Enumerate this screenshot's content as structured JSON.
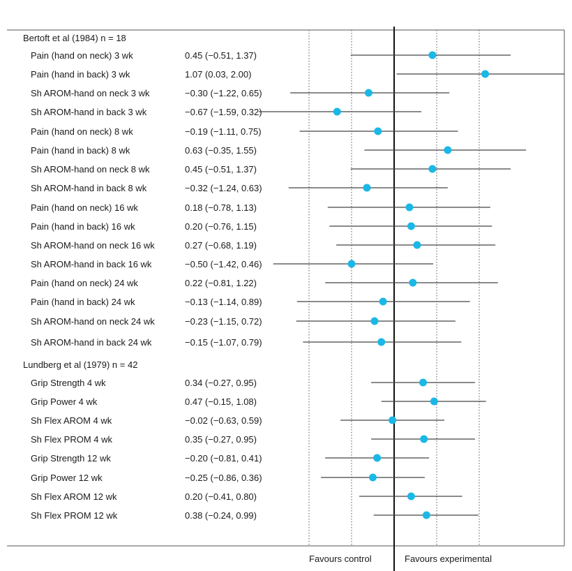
{
  "chart_data": {
    "type": "forest",
    "x_range": [
      -1.8,
      2.0
    ],
    "reference_line": 0,
    "dotted_gridlines": [
      -1.0,
      -0.5,
      0.5,
      1.0
    ],
    "marker_color": "#1ab8e6",
    "line_color": "#444444",
    "footer_labels": {
      "left": "Favours control",
      "right": "Favours experimental"
    },
    "groups": [
      {
        "title": "Bertoft et al (1984) n = 18",
        "rows": [
          {
            "label": "Pain (hand on neck) 3 wk",
            "ci_text": "0.45 (−0.51, 1.37)",
            "est": 0.45,
            "lo": -0.51,
            "hi": 1.37
          },
          {
            "label": "Pain (hand in back) 3 wk",
            "ci_text": "1.07 (0.03, 2.00)",
            "est": 1.07,
            "lo": 0.03,
            "hi": 2.0
          },
          {
            "label": "Sh AROM-hand on neck 3 wk",
            "ci_text": "−0.30 (−1.22, 0.65)",
            "est": -0.3,
            "lo": -1.22,
            "hi": 0.65
          },
          {
            "label": "Sh AROM-hand in back 3 wk",
            "ci_text": "−0.67 (−1.59, 0.32)",
            "est": -0.67,
            "lo": -1.59,
            "hi": 0.32
          },
          {
            "label": "Pain (hand on neck) 8 wk",
            "ci_text": "−0.19 (−1.11, 0.75)",
            "est": -0.19,
            "lo": -1.11,
            "hi": 0.75
          },
          {
            "label": "Pain (hand in back) 8 wk",
            "ci_text": "0.63 (−0.35, 1.55)",
            "est": 0.63,
            "lo": -0.35,
            "hi": 1.55
          },
          {
            "label": "Sh AROM-hand on neck 8 wk",
            "ci_text": "0.45 (−0.51, 1.37)",
            "est": 0.45,
            "lo": -0.51,
            "hi": 1.37
          },
          {
            "label": "Sh AROM-hand in back 8 wk",
            "ci_text": "−0.32 (−1.24, 0.63)",
            "est": -0.32,
            "lo": -1.24,
            "hi": 0.63
          },
          {
            "label": "Pain (hand on neck) 16 wk",
            "ci_text": "0.18 (−0.78, 1.13)",
            "est": 0.18,
            "lo": -0.78,
            "hi": 1.13
          },
          {
            "label": "Pain (hand in back) 16 wk",
            "ci_text": "0.20 (−0.76, 1.15)",
            "est": 0.2,
            "lo": -0.76,
            "hi": 1.15
          },
          {
            "label": "Sh AROM-hand on neck 16 wk",
            "ci_text": "0.27 (−0.68, 1.19)",
            "est": 0.27,
            "lo": -0.68,
            "hi": 1.19
          },
          {
            "label": "Sh AROM-hand in back 16 wk",
            "ci_text": "−0.50 (−1.42, 0.46)",
            "est": -0.5,
            "lo": -1.42,
            "hi": 0.46
          },
          {
            "label": "Pain (hand on neck) 24 wk",
            "ci_text": "0.22 (−0.81, 1.22)",
            "est": 0.22,
            "lo": -0.81,
            "hi": 1.22
          },
          {
            "label": "Pain (hand in back) 24 wk",
            "ci_text": "−0.13 (−1.14, 0.89)",
            "est": -0.13,
            "lo": -1.14,
            "hi": 0.89
          },
          {
            "label": "Sh AROM-hand on neck 24 wk",
            "ci_text": "−0.23 (−1.15, 0.72)",
            "est": -0.23,
            "lo": -1.15,
            "hi": 0.72
          },
          {
            "label": "Sh AROM-hand in back 24 wk",
            "ci_text": "−0.15 (−1.07, 0.79)",
            "est": -0.15,
            "lo": -1.07,
            "hi": 0.79
          }
        ]
      },
      {
        "title": "Lundberg et al (1979) n = 42",
        "rows": [
          {
            "label": "Grip Strength 4 wk",
            "ci_text": "0.34 (−0.27, 0.95)",
            "est": 0.34,
            "lo": -0.27,
            "hi": 0.95
          },
          {
            "label": "Grip Power 4 wk",
            "ci_text": "0.47 (−0.15, 1.08)",
            "est": 0.47,
            "lo": -0.15,
            "hi": 1.08
          },
          {
            "label": "Sh Flex AROM 4 wk",
            "ci_text": "−0.02 (−0.63, 0.59)",
            "est": -0.02,
            "lo": -0.63,
            "hi": 0.59
          },
          {
            "label": "Sh Flex PROM 4 wk",
            "ci_text": "0.35 (−0.27, 0.95)",
            "est": 0.35,
            "lo": -0.27,
            "hi": 0.95
          },
          {
            "label": "Grip Strength 12 wk",
            "ci_text": "−0.20 (−0.81, 0.41)",
            "est": -0.2,
            "lo": -0.81,
            "hi": 0.41
          },
          {
            "label": "Grip Power 12 wk",
            "ci_text": "−0.25 (−0.86, 0.36)",
            "est": -0.25,
            "lo": -0.86,
            "hi": 0.36
          },
          {
            "label": "Sh Flex AROM 12 wk",
            "ci_text": "0.20 (−0.41, 0.80)",
            "est": 0.2,
            "lo": -0.41,
            "hi": 0.8
          },
          {
            "label": "Sh Flex PROM 12 wk",
            "ci_text": "0.38 (−0.24, 0.99)",
            "est": 0.38,
            "lo": -0.24,
            "hi": 0.99
          }
        ]
      }
    ]
  }
}
